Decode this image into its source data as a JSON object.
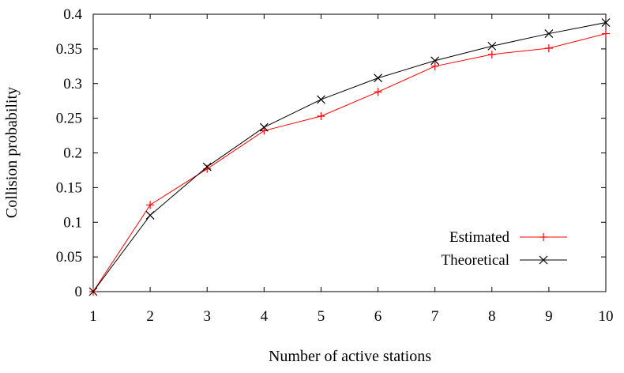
{
  "chart_data": {
    "type": "line",
    "title": "",
    "xlabel": "Number of active stations",
    "ylabel": "Collision probability",
    "x": [
      1,
      2,
      3,
      4,
      5,
      6,
      7,
      8,
      9,
      10
    ],
    "xlim": [
      1,
      10
    ],
    "ylim": [
      0,
      0.4
    ],
    "xticks": [
      "1",
      "2",
      "3",
      "4",
      "5",
      "6",
      "7",
      "8",
      "9",
      "10"
    ],
    "yticks": [
      "0",
      "0.05",
      "0.1",
      "0.15",
      "0.2",
      "0.25",
      "0.3",
      "0.35",
      "0.4"
    ],
    "grid": false,
    "legend_position": "bottom-right",
    "series": [
      {
        "name": "Estimated",
        "color": "#ff0000",
        "marker": "plus",
        "values": [
          0.0,
          0.125,
          0.177,
          0.232,
          0.253,
          0.288,
          0.325,
          0.342,
          0.351,
          0.372
        ]
      },
      {
        "name": "Theoretical",
        "color": "#000000",
        "marker": "cross",
        "values": [
          0.0,
          0.11,
          0.18,
          0.237,
          0.277,
          0.308,
          0.333,
          0.354,
          0.372,
          0.388
        ]
      }
    ]
  }
}
